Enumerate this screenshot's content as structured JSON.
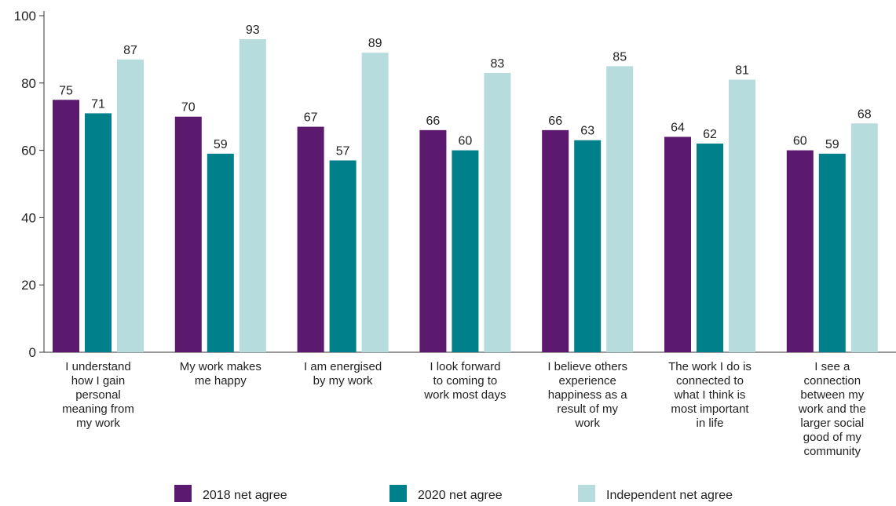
{
  "chart_data": {
    "type": "bar",
    "title": "",
    "xlabel": "",
    "ylabel": "",
    "ylim": [
      0,
      100
    ],
    "yticks": [
      0,
      20,
      40,
      60,
      80,
      100
    ],
    "grid": false,
    "legend_position": "bottom",
    "categories": [
      [
        "I understand",
        "how I gain",
        "personal",
        "meaning from",
        "my work"
      ],
      [
        "My work makes",
        "me happy"
      ],
      [
        "I am energised",
        "by my work"
      ],
      [
        "I look forward",
        "to coming to",
        "work most days"
      ],
      [
        "I believe others",
        "experience",
        "happiness as a",
        "result of my",
        "work"
      ],
      [
        "The work I do is",
        "connected to",
        "what I think is",
        "most important",
        "in life"
      ],
      [
        "I see a",
        "connection",
        "between my",
        "work and the",
        "larger social",
        "good of my",
        "community"
      ]
    ],
    "series": [
      {
        "name": "2018 net agree",
        "color": "#5c1a6e",
        "values": [
          75,
          70,
          67,
          66,
          66,
          64,
          60
        ]
      },
      {
        "name": "2020 net agree",
        "color": "#00808a",
        "values": [
          71,
          59,
          57,
          60,
          63,
          62,
          59
        ]
      },
      {
        "name": "Independent net agree",
        "color": "#b7dcdd",
        "values": [
          87,
          93,
          89,
          83,
          85,
          81,
          68
        ]
      }
    ]
  }
}
